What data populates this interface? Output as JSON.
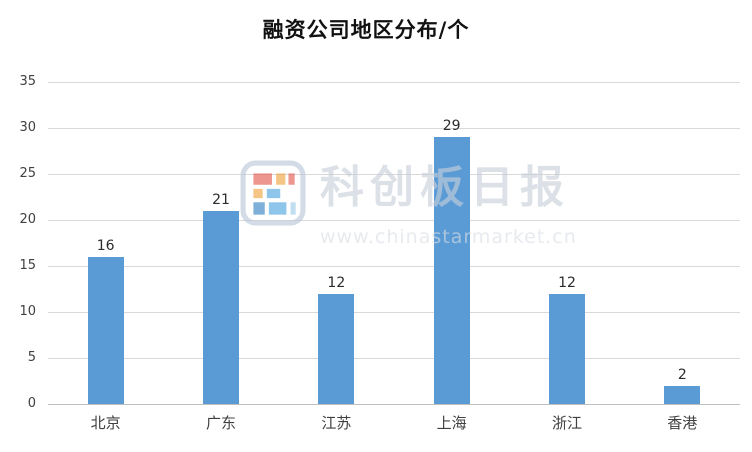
{
  "title": "融资公司地区分布/个",
  "watermark": {
    "brand": "科创板日报",
    "url": "www.chinastarmarket.cn"
  },
  "colors": {
    "bar": "#5B9BD5",
    "gridline": "#D9D9D9",
    "axis_text": "#404040",
    "watermark_text": "#C7CFDA"
  },
  "chart_data": {
    "type": "bar",
    "title": "融资公司地区分布/个",
    "categories": [
      "北京",
      "广东",
      "江苏",
      "上海",
      "浙江",
      "香港"
    ],
    "values": [
      16,
      21,
      12,
      29,
      12,
      2
    ],
    "xlabel": "",
    "ylabel": "",
    "ylim": [
      0,
      35
    ],
    "yticks": [
      0,
      5,
      10,
      15,
      20,
      25,
      30,
      35
    ],
    "grid": true,
    "legend": false
  }
}
